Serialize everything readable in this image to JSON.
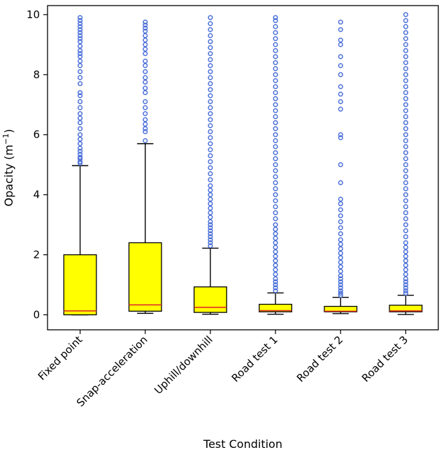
{
  "chart_data": {
    "type": "boxplot",
    "title": "",
    "xlabel": "Test Condition",
    "ylabel_base": "Opacity (m",
    "ylabel_sup": "−1",
    "ylabel_close": ")",
    "ylim": [
      -0.5,
      10.3
    ],
    "yticks": [
      "0",
      "2",
      "4",
      "6",
      "8",
      "10"
    ],
    "colors": {
      "box_fill": "#ffff00",
      "median": "#e0302a",
      "flier": "#4a6fd8",
      "line": "#000000"
    },
    "categories": [
      "Fixed point",
      "Snap-acceleration",
      "Uphill/downhill",
      "Road test 1",
      "Road test 2",
      "Road test 3"
    ],
    "boxes": [
      {
        "whislo": 0.0,
        "q1": 0.0,
        "median": 0.13,
        "q3": 2.0,
        "whishi": 4.97,
        "fliers": [
          5.05,
          5.1,
          5.2,
          5.25,
          5.35,
          5.45,
          5.55,
          5.7,
          5.85,
          6.0,
          6.2,
          6.4,
          6.55,
          6.7,
          6.9,
          7.1,
          7.3,
          7.4,
          7.7,
          7.9,
          8.1,
          8.3,
          8.45,
          8.6,
          8.7,
          8.8,
          8.95,
          9.1,
          9.2,
          9.3,
          9.4,
          9.5,
          9.6,
          9.7,
          9.8,
          9.9
        ]
      },
      {
        "whislo": 0.05,
        "q1": 0.12,
        "median": 0.33,
        "q3": 2.4,
        "whishi": 5.7,
        "fliers": [
          5.8,
          6.1,
          6.2,
          6.35,
          6.5,
          6.7,
          6.9,
          7.1,
          7.4,
          7.55,
          7.75,
          7.9,
          8.1,
          8.3,
          8.45,
          8.7,
          8.85,
          9.0,
          9.15,
          9.3,
          9.45,
          9.55,
          9.65,
          9.75
        ]
      },
      {
        "whislo": 0.02,
        "q1": 0.08,
        "median": 0.25,
        "q3": 0.93,
        "whishi": 2.22,
        "fliers": [
          2.3,
          2.4,
          2.5,
          2.6,
          2.7,
          2.8,
          2.9,
          3.0,
          3.1,
          3.25,
          3.4,
          3.55,
          3.7,
          3.85,
          4.0,
          4.15,
          4.3,
          4.5,
          4.7,
          4.9,
          5.1,
          5.3,
          5.5,
          5.7,
          5.9,
          6.1,
          6.3,
          6.5,
          6.7,
          6.9,
          7.1,
          7.3,
          7.5,
          7.7,
          7.9,
          8.1,
          8.3,
          8.5,
          8.7,
          8.9,
          9.1,
          9.3,
          9.5,
          9.7,
          9.9
        ]
      },
      {
        "whislo": 0.02,
        "q1": 0.1,
        "median": 0.14,
        "q3": 0.35,
        "whishi": 0.73,
        "fliers": [
          0.8,
          0.9,
          1.0,
          1.1,
          1.2,
          1.35,
          1.5,
          1.65,
          1.8,
          1.95,
          2.1,
          2.25,
          2.4,
          2.55,
          2.7,
          2.85,
          3.0,
          3.2,
          3.4,
          3.6,
          3.8,
          4.0,
          4.2,
          4.4,
          4.6,
          4.8,
          5.0,
          5.2,
          5.4,
          5.6,
          5.8,
          6.0,
          6.2,
          6.4,
          6.6,
          6.8,
          7.0,
          7.2,
          7.4,
          7.6,
          7.8,
          8.0,
          8.2,
          8.4,
          8.6,
          8.8,
          9.0,
          9.2,
          9.4,
          9.6,
          9.8,
          9.9
        ]
      },
      {
        "whislo": 0.04,
        "q1": 0.1,
        "median": 0.12,
        "q3": 0.28,
        "whishi": 0.58,
        "fliers": [
          0.65,
          0.72,
          0.8,
          0.9,
          1.0,
          1.1,
          1.2,
          1.3,
          1.45,
          1.6,
          1.75,
          1.9,
          2.05,
          2.2,
          2.35,
          2.5,
          2.7,
          2.9,
          3.1,
          3.3,
          3.5,
          3.7,
          3.85,
          4.4,
          5.0,
          5.9,
          6.0,
          6.85,
          7.1,
          7.35,
          7.6,
          8.0,
          8.3,
          8.6,
          9.0,
          9.15,
          9.5,
          9.75
        ]
      },
      {
        "whislo": 0.01,
        "q1": 0.1,
        "median": 0.13,
        "q3": 0.32,
        "whishi": 0.65,
        "fliers": [
          0.72,
          0.8,
          0.9,
          1.0,
          1.1,
          1.2,
          1.35,
          1.5,
          1.65,
          1.8,
          1.95,
          2.1,
          2.25,
          2.4,
          2.6,
          2.8,
          3.0,
          3.2,
          3.4,
          3.6,
          3.8,
          4.0,
          4.2,
          4.4,
          4.6,
          4.8,
          5.0,
          5.2,
          5.4,
          5.6,
          5.8,
          6.0,
          6.2,
          6.4,
          6.6,
          6.8,
          7.0,
          7.2,
          7.4,
          7.6,
          7.8,
          8.0,
          8.2,
          8.4,
          8.6,
          8.8,
          9.0,
          9.2,
          9.4,
          9.6,
          9.8,
          10.0
        ]
      }
    ]
  }
}
